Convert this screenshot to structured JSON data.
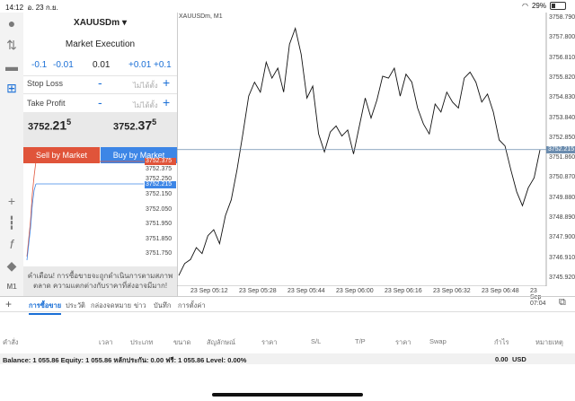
{
  "status": {
    "time": "14:12",
    "date": "อ. 23 ก.ย.",
    "battery": "29%",
    "battery_level": 0.29
  },
  "order": {
    "symbol": "XAUUSDm",
    "execution": "Market Execution",
    "vol_steps": [
      "-0.1",
      "-0.01",
      "0.01",
      "+0.01",
      "+0.1"
    ],
    "stop_loss": {
      "label": "Stop Loss",
      "minus": "-",
      "placeholder": "ไม่ได้ตั้ง",
      "plus": "+"
    },
    "take_profit": {
      "label": "Take Profit",
      "minus": "-",
      "placeholder": "ไม่ได้ตั้ง",
      "plus": "+"
    },
    "bid": {
      "main": "3752.",
      "big": "21",
      "sup": "5"
    },
    "ask": {
      "main": "3752.",
      "big": "37",
      "sup": "5"
    },
    "sell_label": "Sell by Market",
    "buy_label": "Buy by Market",
    "tick_prices": [
      "3752.375",
      "3752.250",
      "3752.215",
      "3752.150",
      "3752.050",
      "3751.950",
      "3751.850",
      "3751.750"
    ],
    "ask_tag": "3752.375",
    "bid_tag": "3752.215",
    "warning": "คำเตือน! การซื้อขายจะถูกดำเนินการตามสภาพตลาด ความแตกต่างกับราคาที่ส่งอาจมีมาก!"
  },
  "chart": {
    "title": "XAUUSDm, M1",
    "y_labels": [
      "3758.790",
      "3757.800",
      "3756.810",
      "3755.820",
      "3754.830",
      "3753.840",
      "3752.850",
      "3751.860",
      "3750.870",
      "3749.880",
      "3748.890",
      "3747.900",
      "3746.910",
      "3745.920"
    ],
    "x_labels": [
      "23 Sep 05:12",
      "23 Sep 05:28",
      "23 Sep 05:44",
      "23 Sep 06:00",
      "23 Sep 06:16",
      "23 Sep 06:32",
      "23 Sep 06:48",
      "23 Sep 07:04"
    ],
    "current_price": "3752.215"
  },
  "chart_data": {
    "type": "line",
    "title": "XAUUSDm, M1",
    "ylim": [
      3745.5,
      3759.0
    ],
    "x": [
      "05:05",
      "05:07",
      "05:09",
      "05:11",
      "05:13",
      "05:15",
      "05:17",
      "05:19",
      "05:21",
      "05:23",
      "05:25",
      "05:27",
      "05:29",
      "05:31",
      "05:33",
      "05:35",
      "05:37",
      "05:39",
      "05:41",
      "05:43",
      "05:45",
      "05:47",
      "05:49",
      "05:51",
      "05:53",
      "05:55",
      "05:57",
      "05:59",
      "06:01",
      "06:03",
      "06:05",
      "06:07",
      "06:09",
      "06:11",
      "06:13",
      "06:15",
      "06:17",
      "06:19",
      "06:21",
      "06:23",
      "06:25",
      "06:27",
      "06:29",
      "06:31",
      "06:33",
      "06:35",
      "06:37",
      "06:39",
      "06:41",
      "06:43",
      "06:45",
      "06:47",
      "06:49",
      "06:51",
      "06:53",
      "06:55",
      "06:57",
      "06:59",
      "07:01",
      "07:03",
      "07:05",
      "07:07",
      "07:09"
    ],
    "values": [
      3745.9,
      3746.5,
      3746.7,
      3747.3,
      3747.0,
      3747.9,
      3748.2,
      3747.5,
      3748.9,
      3749.7,
      3751.2,
      3753.0,
      3754.9,
      3755.6,
      3755.1,
      3756.6,
      3755.8,
      3756.3,
      3755.1,
      3757.5,
      3758.3,
      3757.0,
      3754.8,
      3755.4,
      3753.0,
      3752.1,
      3753.1,
      3753.4,
      3752.9,
      3753.2,
      3752.0,
      3753.4,
      3754.8,
      3753.8,
      3754.7,
      3755.9,
      3755.8,
      3756.3,
      3754.9,
      3756.0,
      3755.6,
      3754.3,
      3753.5,
      3753.0,
      3754.5,
      3754.1,
      3755.1,
      3754.6,
      3754.3,
      3755.8,
      3756.1,
      3755.6,
      3754.6,
      3755.0,
      3754.1,
      3752.7,
      3752.4,
      3751.2,
      3750.1,
      3749.4,
      3750.3,
      3750.8,
      3752.2
    ],
    "grid": false,
    "current_price_line": 3752.215
  },
  "tabs": {
    "items": [
      "การซื้อขาย",
      "ประวัติ",
      "กล่องจดหมาย",
      "ข่าว",
      "บันทึก",
      "การตั้งค่า"
    ]
  },
  "columns": [
    "คำสั่ง",
    "เวลา",
    "ประเภท",
    "ขนาด",
    "สัญลักษณ์",
    "ราคา",
    "S/L",
    "T/P",
    "ราคา",
    "Swap",
    "กำไร",
    "หมายเหตุ"
  ],
  "balance": {
    "text": "Balance: 1 055.86 Equity: 1 055.86 หลักประกัน: 0.00 ฟรี: 1 055.86 Level: 0.00%",
    "profit": "0.00",
    "currency": "USD"
  }
}
